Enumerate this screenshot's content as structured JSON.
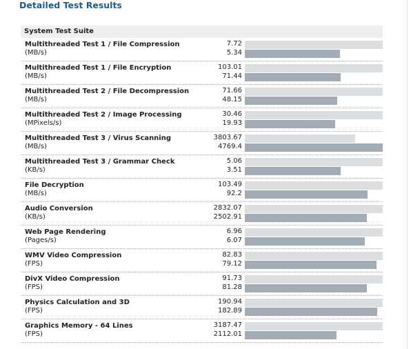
{
  "header": {
    "title": "Detailed Test Results"
  },
  "suite": "System Test Suite",
  "rows": [
    {
      "name": "Multithreaded Test 1 / File Compression",
      "unit": "(MB/s)",
      "values": [
        7.72,
        5.34
      ]
    },
    {
      "name": "Multithreaded Test 1 / File Encryption",
      "unit": "(MB/s)",
      "values": [
        103.01,
        71.44
      ]
    },
    {
      "name": "Multithreaded Test 2 / File Decompression",
      "unit": "(MB/s)",
      "values": [
        71.66,
        48.15
      ]
    },
    {
      "name": "Multithreaded Test 2 / Image Processing",
      "unit": "(MPixels/s)",
      "values": [
        30.46,
        19.93
      ]
    },
    {
      "name": "Multithreaded Test 3 / Virus Scanning",
      "unit": "(MB/s)",
      "values": [
        3803.67,
        4769.4
      ]
    },
    {
      "name": "Multithreaded Test 3 / Grammar Check",
      "unit": "(KB/s)",
      "values": [
        5.06,
        3.51
      ]
    },
    {
      "name": "File Decryption",
      "unit": "(MB/s)",
      "values": [
        103.49,
        92.2
      ]
    },
    {
      "name": "Audio Conversion",
      "unit": "(KB/s)",
      "values": [
        2832.07,
        2502.91
      ]
    },
    {
      "name": "Web Page Rendering",
      "unit": "(Pages/s)",
      "values": [
        6.96,
        6.07
      ]
    },
    {
      "name": "WMV Video Compression",
      "unit": "(FPS)",
      "values": [
        82.83,
        79.12
      ]
    },
    {
      "name": "DivX Video Compression",
      "unit": "(FPS)",
      "values": [
        91.73,
        81.28
      ]
    },
    {
      "name": "Physics Calculation and 3D",
      "unit": "(FPS)",
      "values": [
        190.94,
        182.89
      ]
    },
    {
      "name": "Graphics Memory - 64 Lines",
      "unit": "(FPS)",
      "values": [
        3187.47,
        2112.01
      ]
    }
  ],
  "colors": [
    "#dcdfe2",
    "#a3abb5"
  ]
}
